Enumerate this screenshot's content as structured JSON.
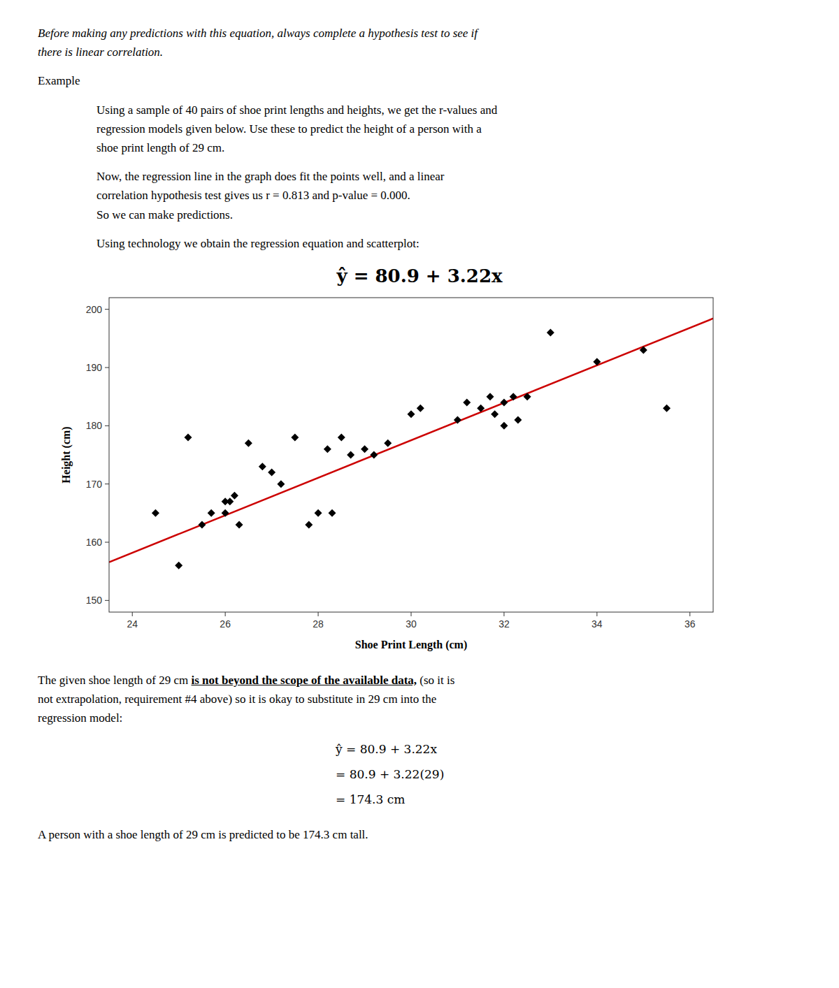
{
  "chart_data": {
    "type": "scatter",
    "x": [
      24.5,
      25.0,
      25.2,
      25.5,
      25.7,
      26.0,
      26.0,
      26.1,
      26.2,
      26.3,
      26.5,
      26.8,
      27.0,
      27.2,
      27.5,
      27.8,
      28.0,
      28.2,
      28.3,
      28.5,
      28.7,
      29.0,
      29.2,
      29.5,
      30.0,
      30.2,
      31.0,
      31.2,
      31.5,
      31.7,
      31.8,
      32.0,
      32.0,
      32.2,
      32.3,
      32.5,
      33.0,
      34.0,
      35.0,
      35.5
    ],
    "values": [
      165,
      156,
      178,
      163,
      165,
      165,
      167,
      167,
      168,
      163,
      177,
      173,
      172,
      170,
      178,
      163,
      165,
      176,
      165,
      178,
      175,
      176,
      175,
      177,
      182,
      183,
      181,
      184,
      183,
      185,
      182,
      180,
      184,
      185,
      181,
      185,
      196,
      191,
      193,
      183
    ],
    "color": "black",
    "marker": "diamond",
    "regression": {
      "intercept": 80.9,
      "slope": 3.22,
      "color": "#cc0000"
    },
    "xlim": [
      23.5,
      36.5
    ],
    "ylim": [
      148,
      202
    ],
    "xticks": [
      24,
      26,
      28,
      30,
      32,
      34,
      36
    ],
    "yticks": [
      150,
      160,
      170,
      180,
      190,
      200
    ],
    "xlabel": "Shoe Print Length (cm)",
    "ylabel": "Height (cm)",
    "grid": false,
    "annotations": {
      "before": [
        [
          "Before making any predictions with this equation, always complete a hypothesis test to see if",
          "there is linear correlation."
        ],
        [
          "Example"
        ],
        [
          "Using a sample of 40 pairs of shoe print lengths and heights, we get the r-values and",
          "regression models given below. Use these to predict the height of a person with a",
          "shoe print length of 29 cm."
        ],
        [
          "Now, the regression line in the graph does fit the points well, and a linear",
          "correlation hypothesis test gives us r = 0.813 and p-value = 0.000.",
          "So we can make predictions."
        ],
        [
          "Using technology we obtain the regression equation and scatterplot:"
        ],
        [
          "ŷ = 80.9 + 3.22x"
        ]
      ],
      "after": [
        [
          [
            "The given shoe length of 29 cm ",
            "is not beyond the scope of the available data,",
            " (so it is"
          ],
          "not extrapolation, requirement #4 above) so it is okay to substitute in 29 cm into the",
          "regression model:"
        ],
        [
          "ŷ = 80.9 + 3.22x",
          "= 80.9 + 3.22(29)",
          "= 174.3 cm"
        ],
        [
          "A person with a shoe length of 29 cm is predicted to be 174.3 cm tall."
        ]
      ]
    }
  }
}
